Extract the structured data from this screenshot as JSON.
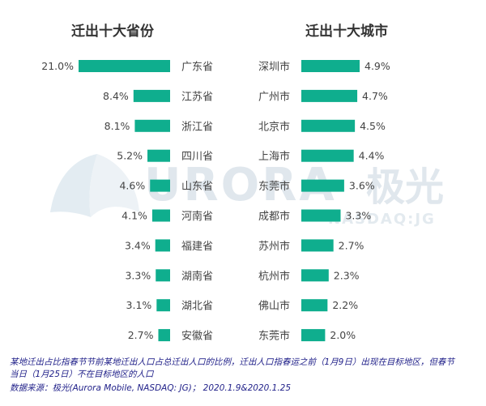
{
  "titles": {
    "left": "迁出十大省份",
    "right": "迁出十大城市"
  },
  "colors": {
    "bar": "#0fae8e",
    "text": "#444444",
    "footnote": "#22228a",
    "watermark": "#dfe8ee"
  },
  "watermark": {
    "brand": "URORA",
    "cn": "极光",
    "ticker": "NASDAQ:JG"
  },
  "footnote": {
    "line1": "某地迁出占比指春节节前某地迁出人口占总迁出人口的比例，迁出人口指春运之前（1月9日）出现在目标地区，但春节",
    "line2": "当日（1月25日）不在目标地区的人口",
    "line3": "数据来源：极光(Aurora Mobile, NASDAQ: JG)； 2020.1.9&2020.1.25"
  },
  "chart_data": [
    {
      "type": "bar",
      "orientation": "horizontal",
      "title": "迁出十大省份",
      "categories": [
        "广东省",
        "江苏省",
        "浙江省",
        "四川省",
        "山东省",
        "河南省",
        "福建省",
        "湖南省",
        "湖北省",
        "安徽省"
      ],
      "values": [
        21.0,
        8.4,
        8.1,
        5.2,
        4.6,
        4.1,
        3.4,
        3.3,
        3.1,
        2.7
      ],
      "value_labels": [
        "21.0%",
        "8.4%",
        "8.1%",
        "5.2%",
        "4.6%",
        "4.1%",
        "3.4%",
        "3.3%",
        "3.1%",
        "2.7%"
      ],
      "unit": "%"
    },
    {
      "type": "bar",
      "orientation": "horizontal",
      "title": "迁出十大城市",
      "categories": [
        "深圳市",
        "广州市",
        "北京市",
        "上海市",
        "东莞市",
        "成都市",
        "苏州市",
        "杭州市",
        "佛山市",
        "东莞市"
      ],
      "values": [
        4.9,
        4.7,
        4.5,
        4.4,
        3.6,
        3.3,
        2.7,
        2.3,
        2.2,
        2.0
      ],
      "value_labels": [
        "4.9%",
        "4.7%",
        "4.5%",
        "4.4%",
        "3.6%",
        "3.3%",
        "2.7%",
        "2.3%",
        "2.2%",
        "2.0%"
      ],
      "unit": "%"
    }
  ]
}
